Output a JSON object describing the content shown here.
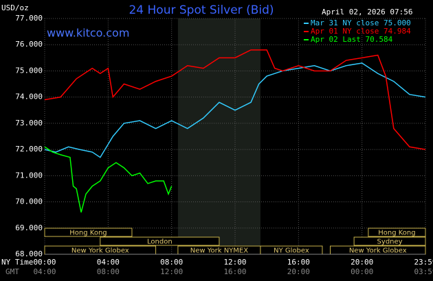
{
  "chart_data": {
    "type": "line",
    "title": "24 Hour Spot Silver (Bid)",
    "y_label": "USD/oz",
    "timestamp": "April 02, 2026 07:56",
    "source": "www.kitco.com",
    "x_label": "NY Time",
    "x2_label": "GMT",
    "xlim": [
      0,
      24
    ],
    "ylim": [
      68,
      77
    ],
    "yticks": [
      {
        "value": 68,
        "label": "68.000"
      },
      {
        "value": 69,
        "label": "69.000"
      },
      {
        "value": 70,
        "label": "70.000"
      },
      {
        "value": 71,
        "label": "71.000"
      },
      {
        "value": 72,
        "label": "72.000"
      },
      {
        "value": 73,
        "label": "73.000"
      },
      {
        "value": 74,
        "label": "74.000"
      },
      {
        "value": 75,
        "label": "75.000"
      },
      {
        "value": 76,
        "label": "76.000"
      },
      {
        "value": 77,
        "label": "77.000"
      }
    ],
    "xticks": [
      {
        "value": 0,
        "label": "00:00"
      },
      {
        "value": 4,
        "label": "04:00"
      },
      {
        "value": 8,
        "label": "08:00"
      },
      {
        "value": 12,
        "label": "12:00"
      },
      {
        "value": 16,
        "label": "16:00"
      },
      {
        "value": 20,
        "label": "20:00"
      },
      {
        "value": 24,
        "label": "23:59"
      }
    ],
    "x2ticks": [
      {
        "value": 0,
        "label": "04:00"
      },
      {
        "value": 4,
        "label": "08:00"
      },
      {
        "value": 8,
        "label": "12:00"
      },
      {
        "value": 12,
        "label": "16:00"
      },
      {
        "value": 16,
        "label": "20:00"
      },
      {
        "value": 20,
        "label": "00:00"
      },
      {
        "value": 24,
        "label": "03:59"
      }
    ],
    "grid": true,
    "highlight_range": [
      8.4,
      13.6
    ],
    "sessions": [
      {
        "label": "Hong Kong",
        "start": 0,
        "end": 5.5
      },
      {
        "label": "London",
        "start": 3.5,
        "end": 11
      },
      {
        "label": "New York Globex",
        "start": 0,
        "end": 7
      },
      {
        "label": "New York NYMEX",
        "start": 8.4,
        "end": 13.6
      },
      {
        "label": "NY Globex",
        "start": 13.6,
        "end": 17.5
      },
      {
        "label": "Hong Kong",
        "start": 20.4,
        "end": 24
      },
      {
        "label": "Sydney",
        "start": 19.5,
        "end": 24
      },
      {
        "label": "New York Globex",
        "start": 18,
        "end": 24
      }
    ],
    "series": [
      {
        "name": "Mar 31 NY close 75.000",
        "color": "#33ccff",
        "x": [
          0,
          0.7,
          1.5,
          2.2,
          3,
          3.5,
          4,
          4.3,
          5,
          6,
          7,
          8,
          9,
          10,
          11,
          12,
          13,
          13.5,
          14,
          15,
          16,
          17,
          18,
          19,
          20,
          21,
          22,
          23,
          24
        ],
        "values": [
          72.0,
          71.9,
          72.1,
          72.0,
          71.9,
          71.7,
          72.2,
          72.5,
          73.0,
          73.1,
          72.8,
          73.1,
          72.8,
          73.2,
          73.8,
          73.5,
          73.8,
          74.5,
          74.8,
          75.0,
          75.1,
          75.2,
          75.0,
          75.2,
          75.3,
          74.9,
          74.6,
          74.1,
          74.0
        ]
      },
      {
        "name": "Apr 01 NY close 74.984",
        "color": "#ff0000",
        "x": [
          0,
          1,
          2,
          3,
          3.5,
          4,
          4.3,
          5,
          6,
          7,
          8,
          9,
          10,
          11,
          12,
          13,
          14,
          14.5,
          15,
          16,
          17,
          18,
          19,
          20,
          21,
          21.5,
          22,
          23,
          24
        ],
        "values": [
          73.9,
          74.0,
          74.7,
          75.1,
          74.9,
          75.1,
          74.0,
          74.5,
          74.3,
          74.6,
          74.8,
          75.2,
          75.1,
          75.5,
          75.5,
          75.8,
          75.8,
          75.1,
          75.0,
          75.2,
          75.0,
          75.0,
          75.4,
          75.5,
          75.6,
          74.8,
          72.8,
          72.1,
          72.0
        ]
      },
      {
        "name": "Apr 02 Last 70.584",
        "color": "#00ff00",
        "x": [
          0,
          0.5,
          1,
          1.6,
          1.8,
          2,
          2.3,
          2.6,
          3,
          3.5,
          4,
          4.5,
          5,
          5.5,
          6,
          6.5,
          7,
          7.5,
          7.8,
          8
        ],
        "values": [
          72.1,
          71.9,
          71.8,
          71.7,
          70.6,
          70.5,
          69.6,
          70.3,
          70.6,
          70.8,
          71.3,
          71.5,
          71.3,
          71.0,
          71.1,
          70.7,
          70.8,
          70.8,
          70.3,
          70.6
        ]
      }
    ]
  }
}
